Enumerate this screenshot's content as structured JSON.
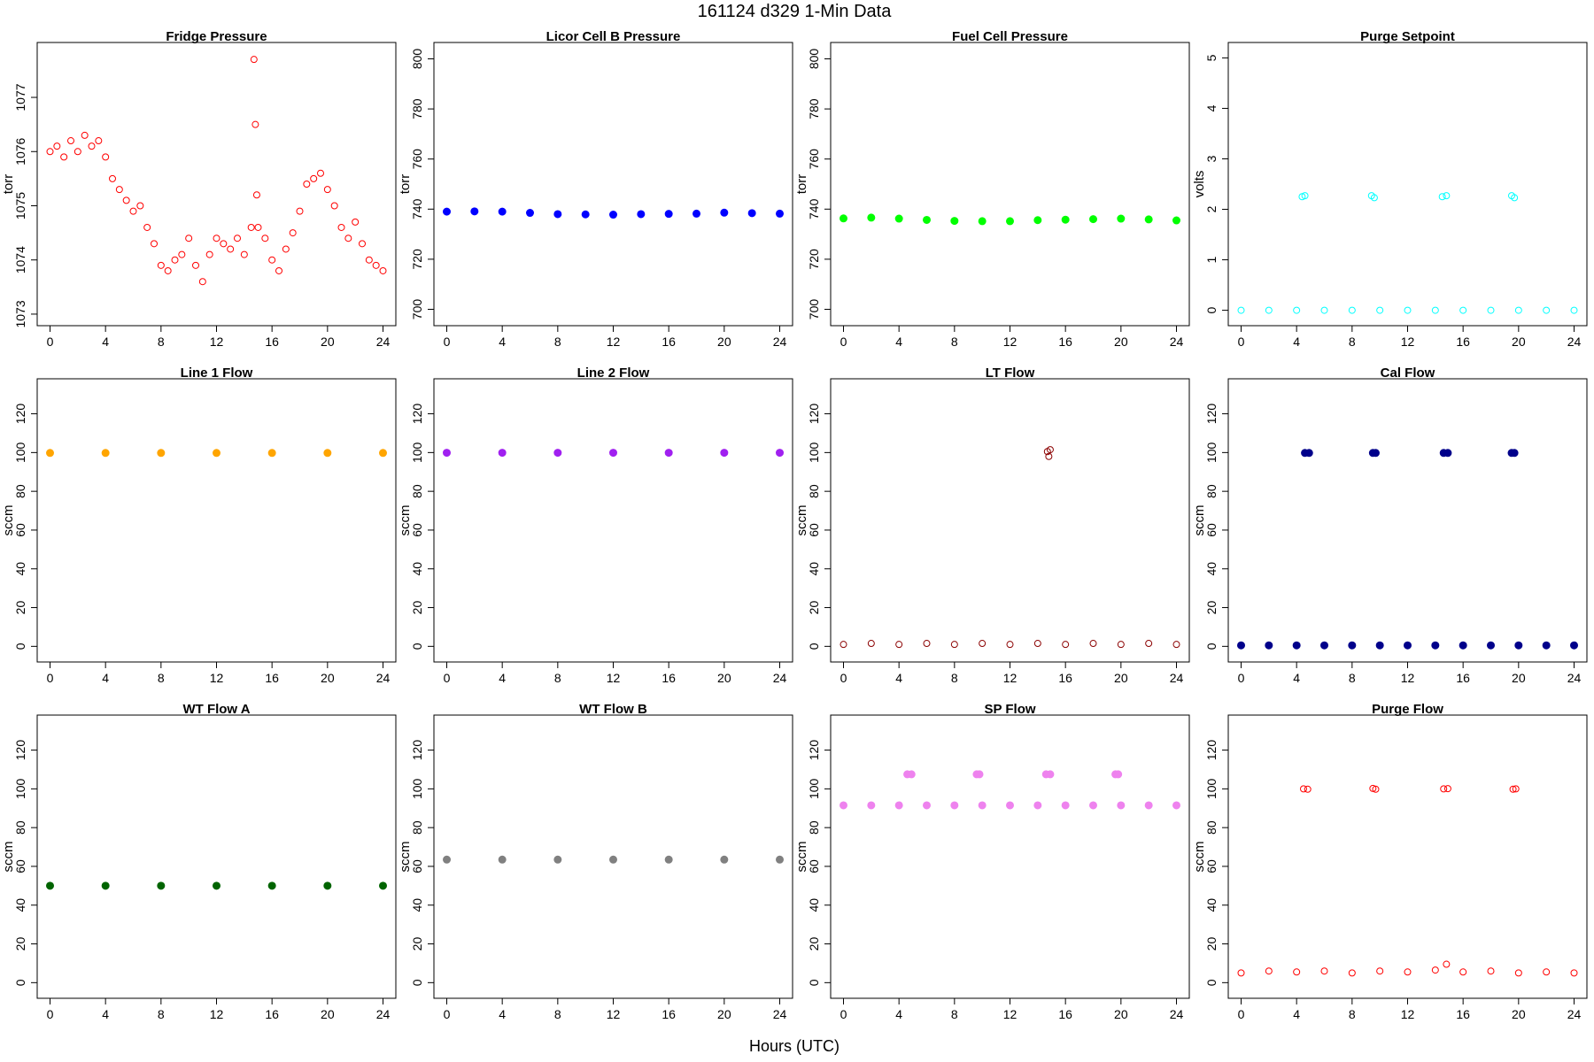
{
  "page": {
    "title": "161124    d329    1-Min Data",
    "xlabel": "Hours (UTC)"
  },
  "chart_data": [
    {
      "type": "scatter",
      "title": "Fridge Pressure",
      "ylabel": "torr",
      "color": "#ff0000",
      "marker": "open-circle",
      "xlim": [
        0,
        24
      ],
      "xticks": [
        0,
        4,
        8,
        12,
        16,
        20,
        24
      ],
      "ylim": [
        1072.95,
        1077.85
      ],
      "yticks": [
        1073,
        1074,
        1075,
        1076,
        1077
      ],
      "x": [
        0.0,
        0.5,
        1.0,
        1.5,
        2.0,
        2.5,
        3.0,
        3.5,
        4.0,
        4.5,
        5.0,
        5.5,
        6.0,
        6.5,
        7.0,
        7.5,
        8.0,
        8.5,
        9.0,
        9.5,
        10.0,
        10.5,
        11.0,
        11.5,
        12.0,
        12.5,
        13.0,
        13.5,
        14.0,
        14.5,
        14.7,
        14.8,
        14.9,
        15.0,
        15.5,
        16.0,
        16.5,
        17.0,
        17.5,
        18.0,
        18.5,
        19.0,
        19.5,
        20.0,
        20.5,
        21.0,
        21.5,
        22.0,
        22.5,
        23.0,
        23.5,
        24.0
      ],
      "y": [
        1076.0,
        1076.1,
        1075.9,
        1076.2,
        1076.0,
        1076.3,
        1076.1,
        1076.2,
        1075.9,
        1075.5,
        1075.3,
        1075.1,
        1074.9,
        1075.0,
        1074.6,
        1074.3,
        1073.9,
        1073.8,
        1074.0,
        1074.1,
        1074.4,
        1073.9,
        1073.6,
        1074.1,
        1074.4,
        1074.3,
        1074.2,
        1074.4,
        1074.1,
        1074.6,
        1077.7,
        1076.5,
        1075.2,
        1074.6,
        1074.4,
        1074.0,
        1073.8,
        1074.2,
        1074.5,
        1074.9,
        1075.4,
        1075.5,
        1075.6,
        1075.3,
        1075.0,
        1074.6,
        1074.4,
        1074.7,
        1074.3,
        1074.0,
        1073.9,
        1073.8
      ]
    },
    {
      "type": "scatter",
      "title": "Licor Cell B Pressure",
      "ylabel": "torr",
      "color": "#0000ff",
      "marker": "filled-circle",
      "xlim": [
        0,
        24
      ],
      "xticks": [
        0,
        4,
        8,
        12,
        16,
        20,
        24
      ],
      "ylim": [
        697,
        803
      ],
      "yticks": [
        700,
        720,
        740,
        760,
        780,
        800
      ],
      "x": [
        0,
        2,
        4,
        6,
        8,
        10,
        12,
        14,
        16,
        18,
        20,
        22,
        24
      ],
      "y": [
        739.0,
        739.1,
        739.0,
        738.5,
        738.0,
        737.9,
        737.8,
        738.0,
        738.1,
        738.2,
        738.6,
        738.4,
        738.2
      ]
    },
    {
      "type": "scatter",
      "title": "Fuel Cell Pressure",
      "ylabel": "torr",
      "color": "#00ff00",
      "marker": "filled-circle",
      "xlim": [
        0,
        24
      ],
      "xticks": [
        0,
        4,
        8,
        12,
        16,
        20,
        24
      ],
      "ylim": [
        697,
        803
      ],
      "yticks": [
        700,
        720,
        740,
        760,
        780,
        800
      ],
      "x": [
        0,
        2,
        4,
        6,
        8,
        10,
        12,
        14,
        16,
        18,
        20,
        22,
        24
      ],
      "y": [
        736.3,
        736.6,
        736.2,
        735.7,
        735.3,
        735.2,
        735.2,
        735.6,
        735.8,
        736.0,
        736.2,
        735.9,
        735.5
      ]
    },
    {
      "type": "scatter",
      "title": "Purge Setpoint",
      "ylabel": "volts",
      "color": "#00ffff",
      "marker": "open-circle",
      "xlim": [
        0,
        24
      ],
      "xticks": [
        0,
        4,
        8,
        12,
        16,
        20,
        24
      ],
      "ylim": [
        -0.13,
        5.13
      ],
      "yticks": [
        0,
        1,
        2,
        3,
        4,
        5
      ],
      "x": [
        0,
        2,
        4,
        6,
        8,
        10,
        12,
        14,
        16,
        18,
        20,
        22,
        24,
        4.4,
        4.6,
        9.4,
        9.6,
        14.5,
        14.8,
        19.5,
        19.7
      ],
      "y": [
        0,
        0,
        0,
        0,
        0,
        0,
        0,
        0,
        0,
        0,
        0,
        0,
        0,
        2.25,
        2.27,
        2.27,
        2.23,
        2.25,
        2.27,
        2.27,
        2.23
      ]
    },
    {
      "type": "scatter",
      "title": "Line 1 Flow",
      "ylabel": "sccm",
      "color": "#ffa500",
      "marker": "filled-circle",
      "xlim": [
        0,
        24
      ],
      "xticks": [
        0,
        4,
        8,
        12,
        16,
        20,
        24
      ],
      "ylim": [
        -3.5,
        133.5
      ],
      "yticks": [
        0,
        20,
        40,
        60,
        80,
        100,
        120
      ],
      "x": [
        0,
        4,
        8,
        12,
        16,
        20,
        24
      ],
      "y": [
        99.8,
        99.8,
        99.8,
        99.8,
        99.8,
        99.8,
        99.8
      ]
    },
    {
      "type": "scatter",
      "title": "Line 2 Flow",
      "ylabel": "sccm",
      "color": "#a020f0",
      "marker": "filled-circle",
      "xlim": [
        0,
        24
      ],
      "xticks": [
        0,
        4,
        8,
        12,
        16,
        20,
        24
      ],
      "ylim": [
        -3.5,
        133.5
      ],
      "yticks": [
        0,
        20,
        40,
        60,
        80,
        100,
        120
      ],
      "x": [
        0,
        4,
        8,
        12,
        16,
        20,
        24
      ],
      "y": [
        99.9,
        99.9,
        99.9,
        99.9,
        99.9,
        99.9,
        99.9
      ]
    },
    {
      "type": "scatter",
      "title": "LT Flow",
      "ylabel": "sccm",
      "color": "#8b0000",
      "marker": "open-circle",
      "xlim": [
        0,
        24
      ],
      "xticks": [
        0,
        4,
        8,
        12,
        16,
        20,
        24
      ],
      "ylim": [
        -3.5,
        133.5
      ],
      "yticks": [
        0,
        20,
        40,
        60,
        80,
        100,
        120
      ],
      "x": [
        0,
        2,
        4,
        6,
        8,
        10,
        12,
        14,
        16,
        18,
        20,
        22,
        24,
        14.7,
        14.8,
        14.9
      ],
      "y": [
        1.0,
        1.5,
        1.0,
        1.5,
        1.0,
        1.5,
        1.0,
        1.5,
        1.0,
        1.5,
        1.0,
        1.5,
        1.0,
        100.5,
        98.0,
        101.5
      ]
    },
    {
      "type": "scatter",
      "title": "Cal Flow",
      "ylabel": "sccm",
      "color": "#00008b",
      "marker": "filled-circle",
      "xlim": [
        0,
        24
      ],
      "xticks": [
        0,
        4,
        8,
        12,
        16,
        20,
        24
      ],
      "ylim": [
        -3.5,
        133.5
      ],
      "yticks": [
        0,
        20,
        40,
        60,
        80,
        100,
        120
      ],
      "x": [
        0,
        2,
        4,
        6,
        8,
        10,
        12,
        14,
        16,
        18,
        20,
        22,
        24,
        4.6,
        4.9,
        9.5,
        9.7,
        14.6,
        14.9,
        19.5,
        19.7
      ],
      "y": [
        0.5,
        0.5,
        0.5,
        0.5,
        0.5,
        0.5,
        0.5,
        0.5,
        0.5,
        0.5,
        0.5,
        0.5,
        0.5,
        99.8,
        99.8,
        99.8,
        99.8,
        99.8,
        99.8,
        99.8,
        99.8
      ]
    },
    {
      "type": "scatter",
      "title": "WT Flow A",
      "ylabel": "sccm",
      "color": "#006400",
      "marker": "filled-circle",
      "xlim": [
        0,
        24
      ],
      "xticks": [
        0,
        4,
        8,
        12,
        16,
        20,
        24
      ],
      "ylim": [
        -3.5,
        133.5
      ],
      "yticks": [
        0,
        20,
        40,
        60,
        80,
        100,
        120
      ],
      "x": [
        0,
        4,
        8,
        12,
        16,
        20,
        24
      ],
      "y": [
        50.0,
        50.0,
        50.0,
        50.0,
        50.0,
        50.0,
        50.0
      ]
    },
    {
      "type": "scatter",
      "title": "WT Flow B",
      "ylabel": "sccm",
      "color": "#808080",
      "marker": "filled-circle",
      "xlim": [
        0,
        24
      ],
      "xticks": [
        0,
        4,
        8,
        12,
        16,
        20,
        24
      ],
      "ylim": [
        -3.5,
        133.5
      ],
      "yticks": [
        0,
        20,
        40,
        60,
        80,
        100,
        120
      ],
      "x": [
        0,
        4,
        8,
        12,
        16,
        20,
        24
      ],
      "y": [
        63.5,
        63.5,
        63.5,
        63.5,
        63.5,
        63.5,
        63.5
      ]
    },
    {
      "type": "scatter",
      "title": "SP Flow",
      "ylabel": "sccm",
      "color": "#ee82ee",
      "marker": "filled-circle",
      "xlim": [
        0,
        24
      ],
      "xticks": [
        0,
        4,
        8,
        12,
        16,
        20,
        24
      ],
      "ylim": [
        -3.5,
        133.5
      ],
      "yticks": [
        0,
        20,
        40,
        60,
        80,
        100,
        120
      ],
      "x": [
        0,
        2,
        4,
        6,
        8,
        10,
        12,
        14,
        16,
        18,
        20,
        22,
        24,
        4.6,
        4.9,
        9.6,
        9.8,
        14.6,
        14.9,
        19.6,
        19.8
      ],
      "y": [
        91.5,
        91.5,
        91.5,
        91.5,
        91.5,
        91.5,
        91.5,
        91.5,
        91.5,
        91.5,
        91.5,
        91.5,
        91.5,
        107.5,
        107.5,
        107.5,
        107.5,
        107.5,
        107.5,
        107.5,
        107.5
      ]
    },
    {
      "type": "scatter",
      "title": "Purge Flow",
      "ylabel": "sccm",
      "color": "#ff0000",
      "marker": "open-circle",
      "xlim": [
        0,
        24
      ],
      "xticks": [
        0,
        4,
        8,
        12,
        16,
        20,
        24
      ],
      "ylim": [
        -3.5,
        133.5
      ],
      "yticks": [
        0,
        20,
        40,
        60,
        80,
        100,
        120
      ],
      "x": [
        0,
        2,
        4,
        6,
        8,
        10,
        12,
        14,
        14.8,
        16,
        18,
        20,
        22,
        24,
        4.5,
        4.8,
        9.5,
        9.7,
        14.6,
        14.9,
        19.6,
        19.8
      ],
      "y": [
        5.0,
        6.0,
        5.5,
        6.0,
        5.0,
        6.0,
        5.5,
        6.5,
        9.5,
        5.5,
        6.0,
        5.0,
        5.5,
        5.0,
        100.0,
        99.8,
        100.2,
        99.8,
        100.0,
        100.1,
        99.8,
        100.0
      ]
    }
  ]
}
